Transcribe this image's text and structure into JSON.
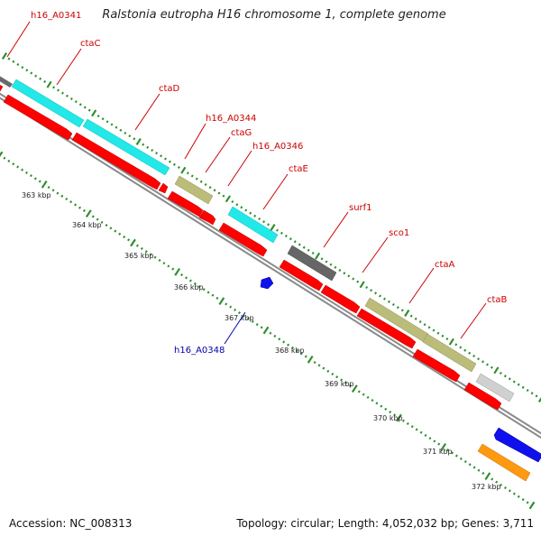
{
  "title": "Ralstonia eutropha H16 chromosome 1, complete genome",
  "footer": {
    "accession": "Accession: NC_008313",
    "summary": "Topology: circular; Length: 4,052,032 bp; Genes: 3,711"
  },
  "axis_ticks": [
    "363 kbp",
    "364 kbp",
    "365 kbp",
    "366 kbp",
    "367 kbp",
    "368 kbp",
    "369 kbp",
    "370 kbp",
    "371 kbp",
    "372 kbp"
  ],
  "gene_labels_forward": [
    "h16_A0341",
    "ctaC",
    "ctaD",
    "h16_A0344",
    "ctaG",
    "h16_A0346",
    "ctaE",
    "surf1",
    "sco1",
    "ctaA",
    "ctaB"
  ],
  "gene_labels_reverse": [
    "h16_A0348"
  ],
  "colors": {
    "gene_label_forward": "#cc0000",
    "gene_label_reverse": "#0000aa",
    "cds": "#ff0000",
    "tick_green": "#2f8f2f",
    "backbone": "#9a9a9a",
    "feature_cyan": "#22e8e8",
    "feature_khaki": "#b8b87a",
    "feature_dark_gray": "#666666",
    "feature_light_gray": "#d0d0d0",
    "feature_blue": "#1010ee",
    "feature_orange": "#ff9a10"
  }
}
